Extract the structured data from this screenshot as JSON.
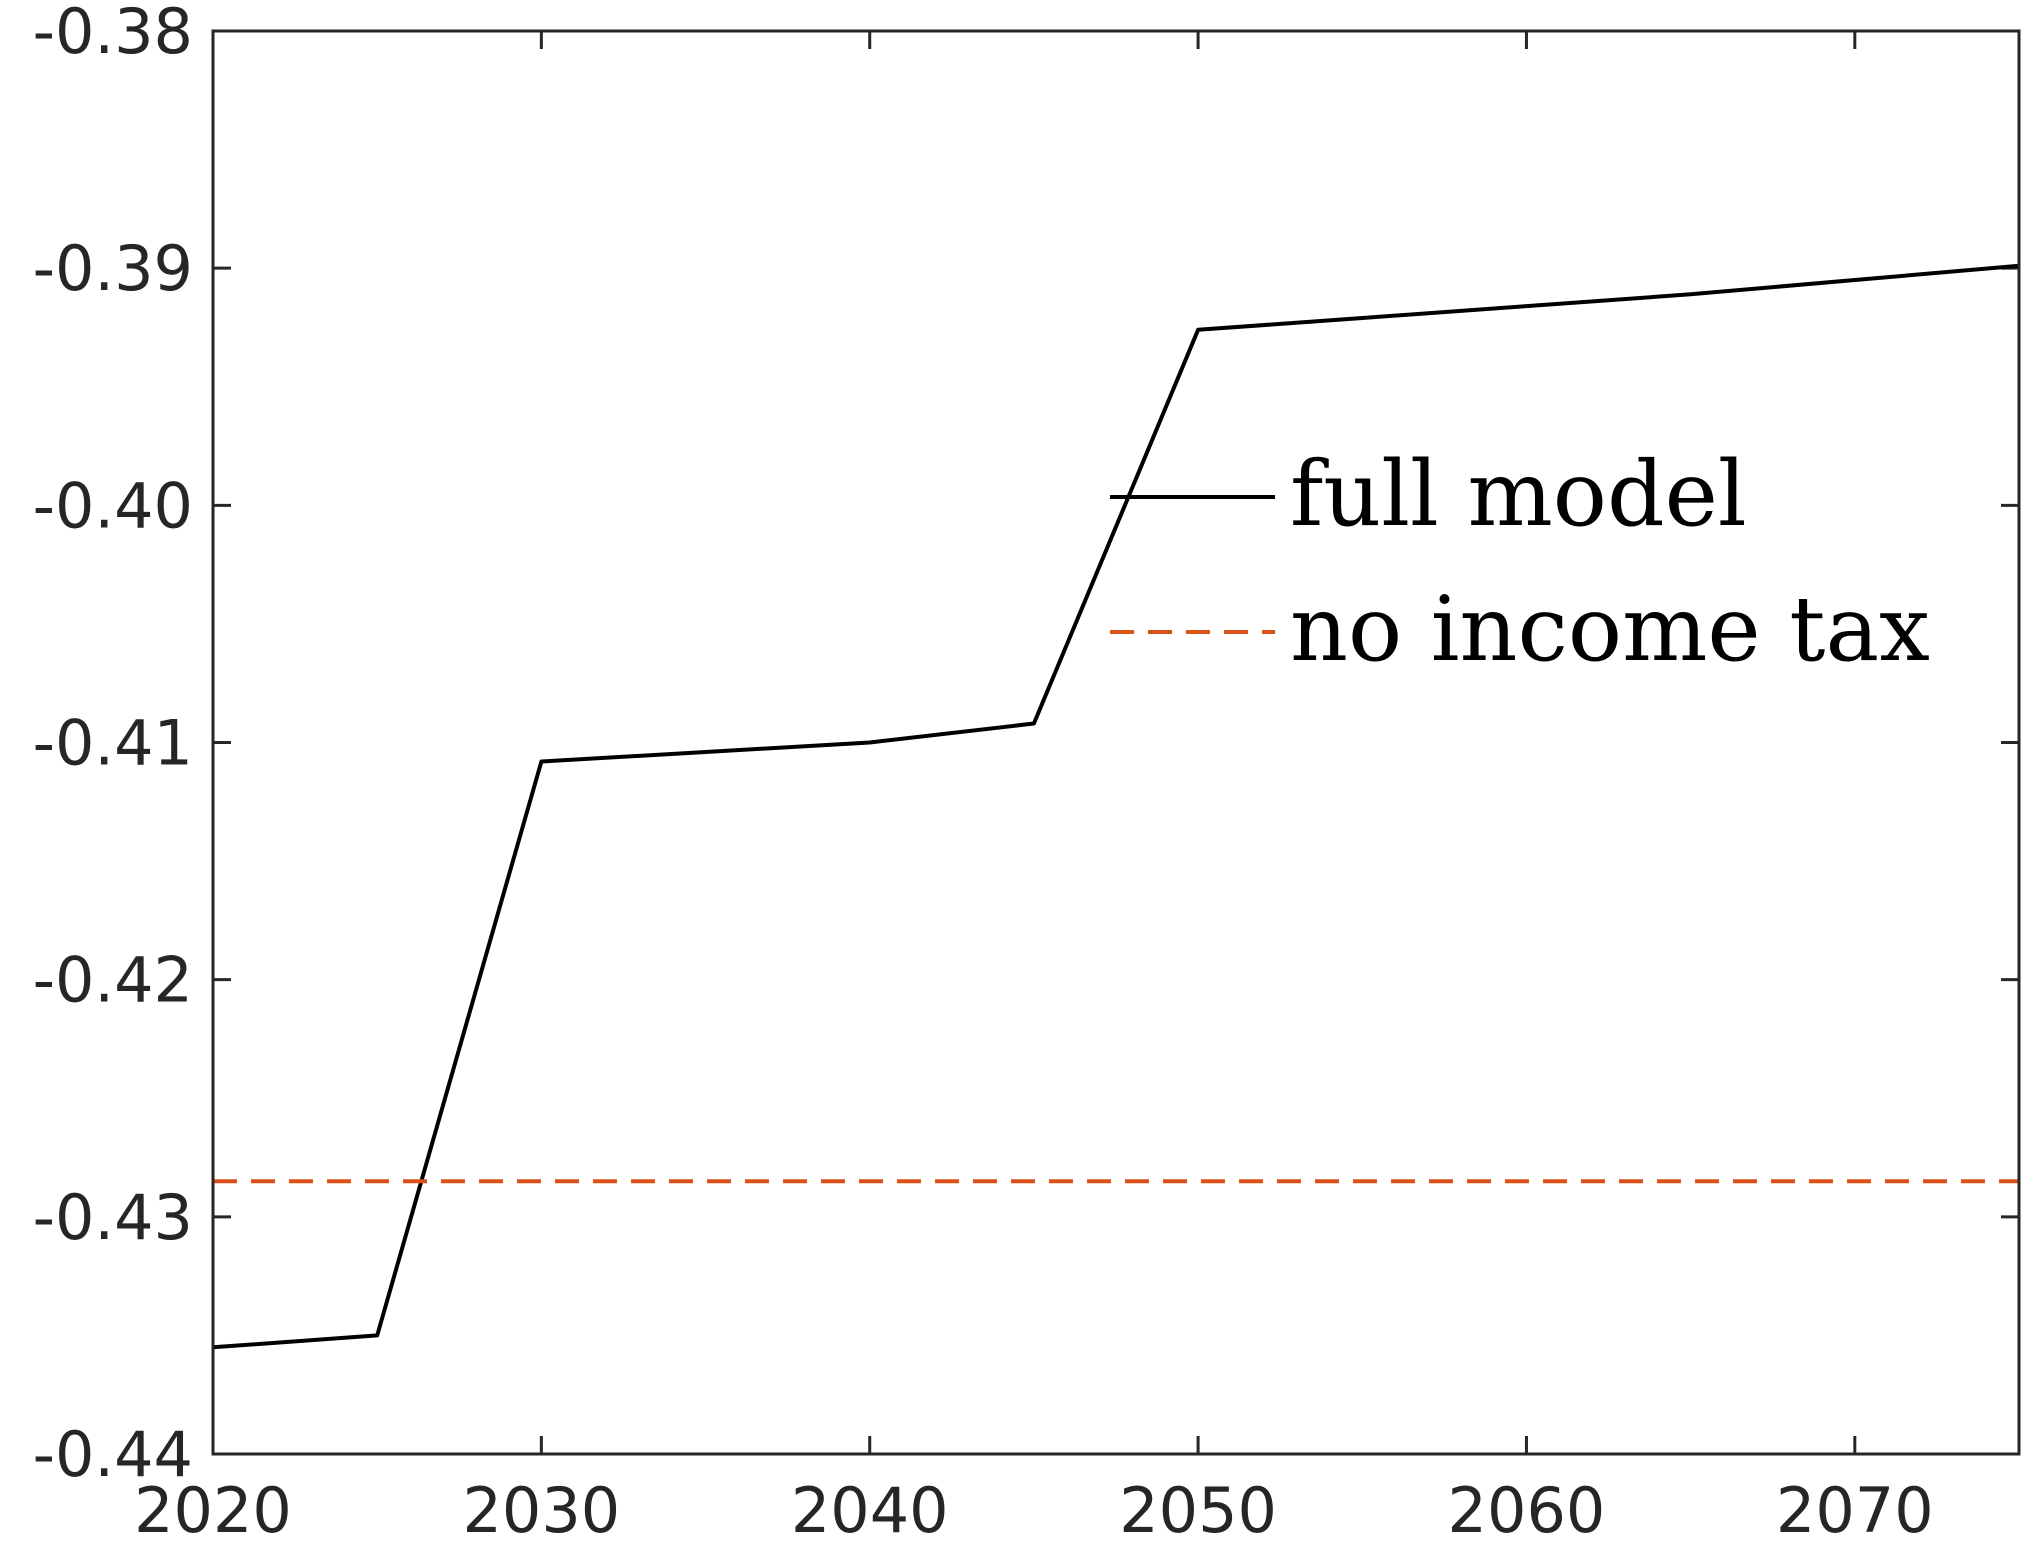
{
  "chart_data": {
    "type": "line",
    "title": "",
    "xlabel": "",
    "ylabel": "",
    "xlim": [
      2020,
      2075
    ],
    "ylim": [
      -0.44,
      -0.38
    ],
    "x_ticks": [
      "2020",
      "2030",
      "2040",
      "2050",
      "2060",
      "2070"
    ],
    "y_ticks": [
      "-0.38",
      "-0.39",
      "-0.40",
      "-0.41",
      "-0.42",
      "-0.43",
      "-0.44"
    ],
    "grid": false,
    "legend_position": "center-right",
    "series": [
      {
        "name": "full model",
        "color": "#000000",
        "style": "solid",
        "x": [
          2020,
          2025,
          2030,
          2035,
          2040,
          2045,
          2050,
          2055,
          2060,
          2065,
          2070,
          2075
        ],
        "y": [
          -0.4355,
          -0.435,
          -0.4108,
          -0.4104,
          -0.41,
          -0.4092,
          -0.3926,
          -0.3921,
          -0.3916,
          -0.3911,
          -0.3905,
          -0.3899
        ]
      },
      {
        "name": "no income tax",
        "color": "#D95319",
        "style": "dashed",
        "x": [
          2020,
          2075
        ],
        "y": [
          -0.4285,
          -0.4285
        ]
      }
    ]
  }
}
